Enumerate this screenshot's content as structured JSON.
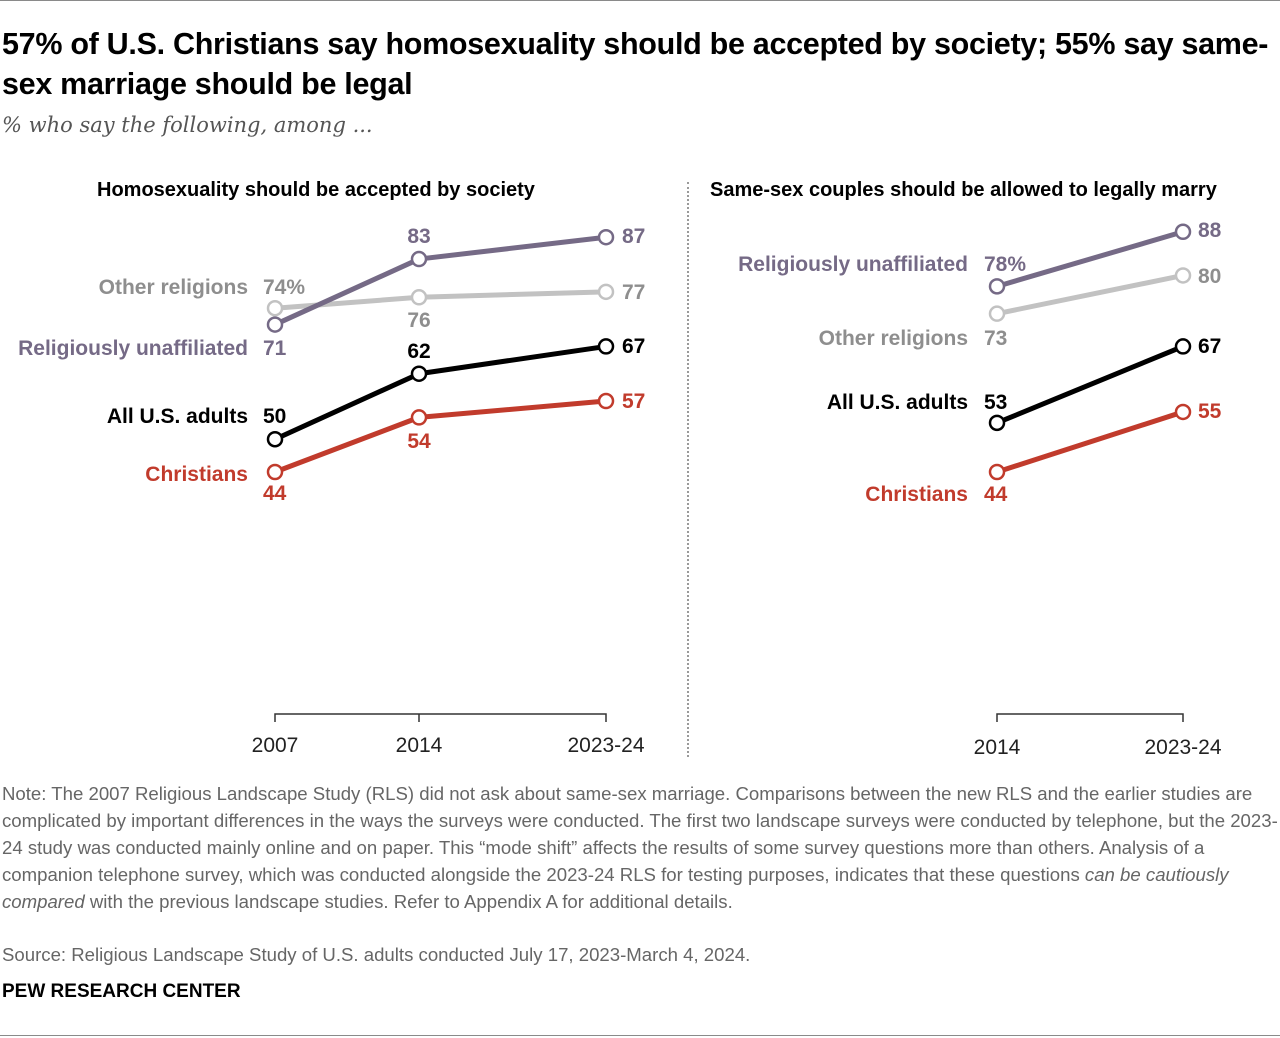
{
  "title": "57% of U.S. Christians say homosexuality should be accepted by society; 55% say same-sex marriage should be legal",
  "subtitle": "% who say the following, among ...",
  "chart_data": [
    {
      "type": "line",
      "title": "Homosexuality should be accepted by society",
      "categories": [
        "2007",
        "2014",
        "2023-24"
      ],
      "series": [
        {
          "name": "Religiously unaffiliated",
          "values": [
            71,
            83,
            87
          ],
          "labels": [
            "71",
            "83",
            "87"
          ],
          "color": "#756a86"
        },
        {
          "name": "Other religions",
          "values": [
            74,
            76,
            77
          ],
          "labels": [
            "74%",
            "76",
            "77"
          ],
          "color": "#c2c2c2",
          "label_color": "#8e8e8e"
        },
        {
          "name": "All U.S. adults",
          "values": [
            50,
            62,
            67
          ],
          "labels": [
            "50",
            "62",
            "67"
          ],
          "color": "#000000"
        },
        {
          "name": "Christians",
          "values": [
            44,
            54,
            57
          ],
          "labels": [
            "44",
            "54",
            "57"
          ],
          "color": "#c13b2c"
        }
      ]
    },
    {
      "type": "line",
      "title": "Same-sex couples should be allowed to legally marry",
      "categories": [
        "2014",
        "2023-24"
      ],
      "series": [
        {
          "name": "Religiously unaffiliated",
          "values": [
            78,
            88
          ],
          "labels": [
            "78%",
            "88"
          ],
          "color": "#756a86"
        },
        {
          "name": "Other religions",
          "values": [
            73,
            80
          ],
          "labels": [
            "73",
            "80"
          ],
          "color": "#c2c2c2",
          "label_color": "#8e8e8e"
        },
        {
          "name": "All U.S. adults",
          "values": [
            53,
            67
          ],
          "labels": [
            "53",
            "67"
          ],
          "color": "#000000"
        },
        {
          "name": "Christians",
          "values": [
            44,
            55
          ],
          "labels": [
            "44",
            "55"
          ],
          "color": "#c13b2c"
        }
      ]
    }
  ],
  "note": {
    "part1": "Note: The 2007 Religious Landscape Study (RLS) did not ask about same-sex marriage. Comparisons between the new RLS and the earlier studies are complicated by important differences in the ways the surveys were conducted. The first two landscape surveys were conducted by telephone, but the 2023-24 study was conducted mainly online and on paper. This “mode shift” affects the results of some survey questions more than others. Analysis of a companion telephone survey, which was conducted alongside the 2023-24 RLS for testing purposes, indicates that these questions ",
    "italic": "can be cautiously compared",
    "part2": " with the previous landscape studies. Refer to Appendix A for additional details."
  },
  "source": "Source: Religious Landscape Study of U.S. adults conducted July 17, 2023-March 4, 2024.",
  "brand": "PEW RESEARCH CENTER"
}
